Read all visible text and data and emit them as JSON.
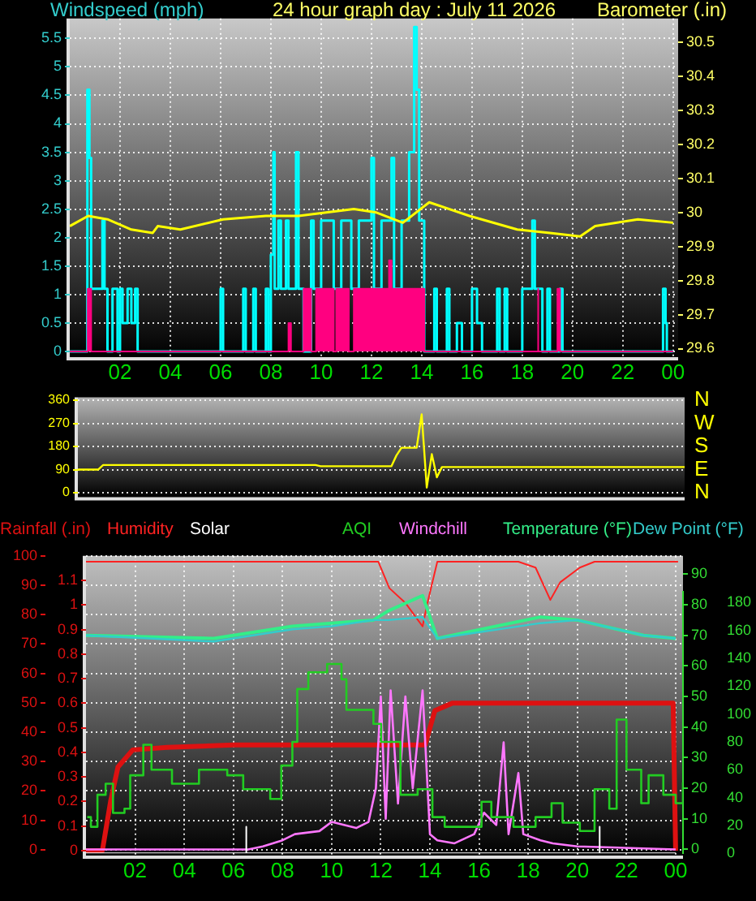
{
  "chart_data": [
    {
      "type": "line",
      "title": "24 hour graph day : July 11 2026",
      "ylabel": "Windspeed (mph)",
      "y2label": "Barometer (.in)",
      "xlim": [
        "2026-07-11T00:00",
        "2026-07-12T00:12"
      ],
      "xticks": [
        {
          "value": "2026-07-11T02:00",
          "label": "02"
        },
        {
          "value": "2026-07-11T04:00",
          "label": "04"
        },
        {
          "value": "2026-07-11T06:00",
          "label": "06"
        },
        {
          "value": "2026-07-11T08:00",
          "label": "08"
        },
        {
          "value": "2026-07-11T10:00",
          "label": "10"
        },
        {
          "value": "2026-07-11T12:00",
          "label": "12"
        },
        {
          "value": "2026-07-11T14:00",
          "label": "14"
        },
        {
          "value": "2026-07-11T16:00",
          "label": "16"
        },
        {
          "value": "2026-07-11T18:00",
          "label": "18"
        },
        {
          "value": "2026-07-11T20:00",
          "label": "20"
        },
        {
          "value": "2026-07-11T22:00",
          "label": "22"
        },
        {
          "value": "2026-07-12T00:00",
          "label": "00"
        }
      ],
      "ylim": [
        -0.1,
        5.85
      ],
      "yticks": [
        0,
        0.5,
        1,
        1.5,
        2,
        2.5,
        3,
        3.5,
        4,
        4.5,
        5,
        5.5
      ],
      "y2lim": [
        29.575,
        30.57
      ],
      "y2ticks": [
        29.6,
        29.7,
        29.8,
        29.9,
        30,
        30.1,
        30.2,
        30.3,
        30.4,
        30.5
      ],
      "grid": true,
      "series": [
        {
          "type": "step",
          "color": "#00ffff",
          "x": [
            "2026-07-11T00:00",
            "2026-07-11T00:42",
            "2026-07-11T00:47",
            "2026-07-11T00:51",
            "2026-07-11T01:18",
            "2026-07-11T01:23",
            "2026-07-11T01:30",
            "2026-07-11T01:42",
            "2026-07-11T01:54",
            "2026-07-11T02:00",
            "2026-07-11T02:06",
            "2026-07-11T02:18",
            "2026-07-11T02:27",
            "2026-07-11T02:36",
            "2026-07-11T02:42",
            "2026-07-11T06:00",
            "2026-07-11T06:06",
            "2026-07-11T06:54",
            "2026-07-11T07:00",
            "2026-07-11T07:18",
            "2026-07-11T07:24",
            "2026-07-11T07:48",
            "2026-07-11T07:54",
            "2026-07-11T08:00",
            "2026-07-11T08:06",
            "2026-07-11T08:09",
            "2026-07-11T08:18",
            "2026-07-11T08:24",
            "2026-07-11T08:36",
            "2026-07-11T08:42",
            "2026-07-11T09:00",
            "2026-07-11T09:06",
            "2026-07-11T09:18",
            "2026-07-11T09:36",
            "2026-07-11T09:42",
            "2026-07-11T10:00",
            "2026-07-11T10:30",
            "2026-07-11T10:48",
            "2026-07-11T11:12",
            "2026-07-11T11:30",
            "2026-07-11T12:00",
            "2026-07-11T12:06",
            "2026-07-11T12:24",
            "2026-07-11T12:48",
            "2026-07-11T12:54",
            "2026-07-11T13:12",
            "2026-07-11T13:30",
            "2026-07-11T13:42",
            "2026-07-11T13:48",
            "2026-07-11T13:54",
            "2026-07-11T14:06",
            "2026-07-11T14:30",
            "2026-07-11T14:36",
            "2026-07-11T15:00",
            "2026-07-11T15:06",
            "2026-07-11T15:24",
            "2026-07-11T15:36",
            "2026-07-11T16:00",
            "2026-07-11T16:12",
            "2026-07-11T16:24",
            "2026-07-11T17:00",
            "2026-07-11T17:06",
            "2026-07-11T17:18",
            "2026-07-11T17:24",
            "2026-07-11T18:00",
            "2026-07-11T18:24",
            "2026-07-11T18:30",
            "2026-07-11T18:48",
            "2026-07-11T19:00",
            "2026-07-11T19:06",
            "2026-07-11T19:30",
            "2026-07-11T19:36",
            "2026-07-11T23:36",
            "2026-07-11T23:42",
            "2026-07-11T23:45",
            "2026-07-12T00:00"
          ],
          "values": [
            0,
            4.6,
            3.4,
            1.1,
            2.3,
            1.1,
            0,
            1.1,
            0,
            1.1,
            0.5,
            1.1,
            0.5,
            1.1,
            0,
            1.1,
            0,
            1.1,
            0,
            1.1,
            0,
            1.1,
            0,
            1.7,
            3.5,
            1.1,
            2.3,
            1.1,
            2.3,
            1.1,
            3.5,
            1.1,
            0,
            2.3,
            1.1,
            2.3,
            1.1,
            2.3,
            1.1,
            2.3,
            3.4,
            1.1,
            2.3,
            3.4,
            1.1,
            2.3,
            3.5,
            5.7,
            4.6,
            2.3,
            0,
            1.1,
            0,
            1.1,
            0,
            0.5,
            0,
            1.1,
            0.5,
            0,
            1.1,
            0,
            1.1,
            0,
            1.1,
            2.3,
            1.1,
            0,
            1.1,
            0,
            1.1,
            0,
            1.1,
            0.5,
            0,
            0
          ]
        },
        {
          "type": "area",
          "color": "#ff0080",
          "x": [
            "2026-07-11T00:00",
            "2026-07-11T00:43",
            "2026-07-11T00:43",
            "2026-07-11T00:51",
            "2026-07-11T00:51",
            "2026-07-11T08:42",
            "2026-07-11T08:42",
            "2026-07-11T08:48",
            "2026-07-11T08:48",
            "2026-07-11T09:18",
            "2026-07-11T09:18",
            "2026-07-11T09:36",
            "2026-07-11T09:36",
            "2026-07-11T09:48",
            "2026-07-11T09:48",
            "2026-07-11T10:30",
            "2026-07-11T10:30",
            "2026-07-11T10:36",
            "2026-07-11T10:36",
            "2026-07-11T11:06",
            "2026-07-11T11:06",
            "2026-07-11T11:18",
            "2026-07-11T11:18",
            "2026-07-11T12:42",
            "2026-07-11T12:42",
            "2026-07-11T12:48",
            "2026-07-11T12:48",
            "2026-07-11T14:06",
            "2026-07-11T14:06",
            "2026-07-11T18:36",
            "2026-07-11T18:36",
            "2026-07-11T18:39",
            "2026-07-11T18:39",
            "2026-07-11T19:24",
            "2026-07-11T19:24",
            "2026-07-11T19:30",
            "2026-07-11T19:30",
            "2026-07-12T00:00"
          ],
          "values": [
            0,
            0,
            1.1,
            1.1,
            0,
            0,
            0.5,
            0.5,
            0,
            0,
            1.1,
            1.1,
            0,
            0,
            1.1,
            1.1,
            0,
            0,
            1.1,
            1.1,
            0,
            0,
            1.1,
            1.1,
            1.6,
            1.6,
            1.1,
            1.1,
            0,
            0,
            1.1,
            1.1,
            0,
            0,
            1.1,
            1.1,
            0,
            0
          ]
        },
        {
          "type": "line",
          "axis": "y2",
          "color": "#ffff00",
          "x": [
            "2026-07-11T00:00",
            "2026-07-11T00:44",
            "2026-07-11T01:30",
            "2026-07-11T02:27",
            "2026-07-11T03:18",
            "2026-07-11T03:30",
            "2026-07-11T04:24",
            "2026-07-11T06:06",
            "2026-07-11T07:48",
            "2026-07-11T09:06",
            "2026-07-11T11:18",
            "2026-07-11T12:12",
            "2026-07-11T13:15",
            "2026-07-11T14:18",
            "2026-07-11T15:54",
            "2026-07-11T17:48",
            "2026-07-11T19:06",
            "2026-07-11T20:18",
            "2026-07-11T20:54",
            "2026-07-11T22:36",
            "2026-07-12T00:00"
          ],
          "values": [
            29.96,
            29.99,
            29.98,
            29.95,
            29.94,
            29.96,
            29.95,
            29.98,
            29.99,
            29.99,
            30.01,
            30.0,
            29.97,
            30.03,
            29.99,
            29.95,
            29.94,
            29.93,
            29.96,
            29.98,
            29.97
          ]
        }
      ]
    },
    {
      "type": "line",
      "categories": [
        null,
        null,
        null,
        null,
        null,
        null,
        null,
        null,
        null,
        null,
        null,
        null,
        null,
        null,
        null,
        null,
        null,
        null,
        null,
        null,
        null,
        null,
        null,
        null,
        null,
        null,
        null,
        null,
        null,
        null,
        null,
        null,
        null,
        null,
        null,
        null,
        null,
        null,
        null,
        null,
        null,
        null,
        null,
        null,
        null,
        null,
        null,
        null,
        null,
        null,
        null,
        null,
        null,
        null,
        null,
        null,
        null,
        null,
        null,
        null,
        null,
        null,
        null,
        null,
        null,
        null,
        null,
        null,
        null,
        null,
        null,
        null,
        null,
        null,
        null,
        null,
        null,
        null,
        null,
        null,
        null,
        null,
        null,
        null,
        null,
        null,
        null,
        null,
        null,
        null,
        null,
        null,
        null,
        null,
        null,
        null,
        null,
        null,
        null,
        null,
        null,
        null,
        null,
        null,
        null,
        null,
        null,
        null,
        null,
        null,
        null,
        null,
        null,
        null,
        null,
        null,
        null,
        null,
        null,
        null,
        null
      ],
      "ylim": [
        -17,
        371
      ],
      "yticks": [
        0,
        90,
        180,
        270,
        360
      ],
      "annotations": [
        "N",
        "W",
        "S",
        "E",
        "N"
      ],
      "grid": "y",
      "series": [
        {
          "color": "#ffff00",
          "values": [
            90,
            90,
            90,
            90,
            90,
            108,
            108,
            108,
            108,
            108,
            108,
            108,
            108,
            108,
            108,
            108,
            108,
            108,
            108,
            108,
            108,
            108,
            108,
            108,
            108,
            108,
            108,
            108,
            108,
            108,
            108,
            108,
            108,
            108,
            108,
            108,
            108,
            108,
            108,
            108,
            108,
            108,
            108,
            108,
            108,
            108,
            108,
            108,
            103,
            103,
            103,
            103,
            103,
            103,
            103,
            103,
            103,
            103,
            103,
            103,
            103,
            103,
            103,
            145,
            175,
            175,
            175,
            175,
            305,
            20,
            150,
            60,
            100,
            100,
            100,
            100,
            100,
            100,
            100,
            100,
            100,
            100,
            100,
            100,
            100,
            100,
            100,
            100,
            100,
            100,
            100,
            100,
            100,
            100,
            100,
            100,
            100,
            100,
            100,
            100,
            100,
            100,
            100,
            100,
            100,
            100,
            100,
            100,
            100,
            100,
            100,
            100,
            100,
            100,
            100,
            100,
            100,
            100,
            100,
            100,
            100
          ]
        }
      ]
    },
    {
      "type": "line",
      "xlim": [
        "2026-07-11T00:00",
        "2026-07-12T00:18"
      ],
      "xticks": [
        {
          "value": "2026-07-11T02:00",
          "label": "02"
        },
        {
          "value": "2026-07-11T04:00",
          "label": "04"
        },
        {
          "value": "2026-07-11T06:00",
          "label": "06"
        },
        {
          "value": "2026-07-11T08:00",
          "label": "08"
        },
        {
          "value": "2026-07-11T10:00",
          "label": "10"
        },
        {
          "value": "2026-07-11T12:00",
          "label": "12"
        },
        {
          "value": "2026-07-11T14:00",
          "label": "14"
        },
        {
          "value": "2026-07-11T16:00",
          "label": "16"
        },
        {
          "value": "2026-07-11T18:00",
          "label": "18"
        },
        {
          "value": "2026-07-11T20:00",
          "label": "20"
        },
        {
          "value": "2026-07-11T22:00",
          "label": "22"
        },
        {
          "value": "2026-07-12T00:00",
          "label": "00"
        }
      ],
      "ylim": [
        -2,
        100
      ],
      "yticks": [
        0,
        10,
        20,
        30,
        40,
        50,
        60,
        70,
        80,
        90,
        100
      ],
      "y2lim": [
        -0.02,
        1.2
      ],
      "y2ticks": [
        0,
        0.1,
        0.2,
        0.3,
        0.4,
        0.5,
        0.6,
        0.7,
        0.8,
        0.9,
        1,
        1.1
      ],
      "y3lim": [
        -2,
        96
      ],
      "y3ticks": [
        0,
        10,
        20,
        30,
        40,
        50,
        60,
        70,
        80,
        90
      ],
      "grid": true,
      "legend": "top",
      "series": [
        {
          "name": "Rainfall (.in)",
          "axis": "y2",
          "color": "#dd1111",
          "x": [
            "2026-07-11T00:00",
            "2026-07-11T00:40",
            "2026-07-11T01:00",
            "2026-07-11T01:18",
            "2026-07-11T01:54",
            "2026-07-11T03:18",
            "2026-07-11T06:00",
            "2026-07-11T13:48",
            "2026-07-11T14:12",
            "2026-07-11T14:54",
            "2026-07-11T23:54",
            "2026-07-12T00:00"
          ],
          "values": [
            0,
            0,
            0.2,
            0.34,
            0.41,
            0.42,
            0.43,
            0.43,
            0.57,
            0.6,
            0.6,
            0
          ]
        },
        {
          "name": "Humidity",
          "color": "#ff2222",
          "x": [
            "2026-07-11T00:00",
            "2026-07-11T11:54",
            "2026-07-11T12:21",
            "2026-07-11T13:00",
            "2026-07-11T13:42",
            "2026-07-11T13:54",
            "2026-07-11T14:18",
            "2026-07-11T17:36",
            "2026-07-11T18:18",
            "2026-07-11T18:54",
            "2026-07-11T19:18",
            "2026-07-11T20:06",
            "2026-07-11T20:42",
            "2026-07-12T00:06"
          ],
          "values": [
            98,
            98,
            89,
            84,
            76,
            84,
            98,
            98,
            96,
            85,
            91,
            96,
            98,
            98
          ]
        },
        {
          "name": "Windchill",
          "axis": "y3",
          "color": "#ff77ff",
          "x": [
            "2026-07-11T00:00",
            "2026-07-11T06:36",
            "2026-07-11T07:12",
            "2026-07-11T08:00",
            "2026-07-11T08:30",
            "2026-07-11T09:30",
            "2026-07-11T10:00",
            "2026-07-11T10:30",
            "2026-07-11T11:00",
            "2026-07-11T11:30",
            "2026-07-11T11:48",
            "2026-07-11T12:00",
            "2026-07-11T12:12",
            "2026-07-11T12:24",
            "2026-07-11T12:42",
            "2026-07-11T13:00",
            "2026-07-11T13:18",
            "2026-07-11T13:42",
            "2026-07-11T14:00",
            "2026-07-11T14:18",
            "2026-07-11T15:00",
            "2026-07-11T15:48",
            "2026-07-11T16:12",
            "2026-07-11T16:42",
            "2026-07-11T17:00",
            "2026-07-11T17:12",
            "2026-07-11T17:36",
            "2026-07-11T17:48",
            "2026-07-11T18:30",
            "2026-07-11T19:00",
            "2026-07-11T20:00",
            "2026-07-12T00:00"
          ],
          "values": [
            0,
            0,
            1,
            3,
            5,
            6,
            9,
            8,
            7,
            9,
            20,
            50,
            10,
            52,
            15,
            50,
            20,
            52,
            5,
            3,
            2,
            5,
            12,
            8,
            35,
            5,
            25,
            5,
            3,
            2,
            1,
            0
          ]
        },
        {
          "name": "Temperature (°F)",
          "axis": "y3",
          "color": "#33ee88",
          "x": [
            "2026-07-11T00:00",
            "2026-07-11T05:12",
            "2026-07-11T08:24",
            "2026-07-11T10:00",
            "2026-07-11T11:42",
            "2026-07-11T12:18",
            "2026-07-11T13:42",
            "2026-07-11T14:18",
            "2026-07-11T18:30",
            "2026-07-11T20:00",
            "2026-07-11T22:42",
            "2026-07-12T00:00"
          ],
          "values": [
            70,
            69,
            73,
            74,
            75,
            78,
            83,
            69,
            76,
            75,
            70,
            69
          ]
        },
        {
          "name": "Dew Point (°F)",
          "axis": "y3",
          "color": "#33cccc",
          "x": [
            "2026-07-11T00:00",
            "2026-07-11T05:12",
            "2026-07-11T08:24",
            "2026-07-11T10:00",
            "2026-07-11T11:42",
            "2026-07-11T12:18",
            "2026-07-11T13:42",
            "2026-07-11T14:18",
            "2026-07-11T18:30",
            "2026-07-11T20:00",
            "2026-07-11T22:42",
            "2026-07-12T00:00"
          ],
          "values": [
            70,
            68,
            72,
            73,
            75,
            75,
            76,
            69,
            74,
            75,
            70,
            69
          ]
        }
      ]
    },
    {
      "type": "line",
      "xlim": [
        "2026-07-11T00:00",
        "2026-07-12T00:18"
      ],
      "ylim": [
        0,
        188
      ],
      "yticks": [
        0,
        20,
        40,
        60,
        80,
        100,
        120,
        140,
        160,
        180
      ],
      "tick_labels": "y",
      "legend": "top",
      "series": [
        {
          "name": "Solar",
          "color": "#ffffff",
          "x": [
            "2026-07-11T00:00",
            "2026-07-11T06:30",
            "2026-07-11T06:31",
            "2026-07-11T06:32",
            "2026-07-11T20:53",
            "2026-07-11T20:54",
            "2026-07-11T20:55",
            "2026-07-12T00:00"
          ],
          "values": [
            0,
            0,
            19,
            0,
            0,
            19,
            0,
            0
          ]
        },
        {
          "name": "AQI",
          "type": "step",
          "color": "#22cc22",
          "x": [
            "2026-07-11T00:03",
            "2026-07-11T00:12",
            "2026-07-11T00:28",
            "2026-07-11T00:48",
            "2026-07-11T01:06",
            "2026-07-11T01:34",
            "2026-07-11T01:48",
            "2026-07-11T02:20",
            "2026-07-11T02:40",
            "2026-07-11T03:30",
            "2026-07-11T04:36",
            "2026-07-11T05:45",
            "2026-07-11T06:24",
            "2026-07-11T07:30",
            "2026-07-11T07:57",
            "2026-07-11T08:24",
            "2026-07-11T08:36",
            "2026-07-11T09:03",
            "2026-07-11T09:49",
            "2026-07-11T10:24",
            "2026-07-11T10:36",
            "2026-07-11T11:42",
            "2026-07-11T12:01",
            "2026-07-11T12:21",
            "2026-07-11T12:48",
            "2026-07-11T13:30",
            "2026-07-11T14:06",
            "2026-07-11T14:36",
            "2026-07-11T15:12",
            "2026-07-11T16:06",
            "2026-07-11T16:30",
            "2026-07-11T17:24",
            "2026-07-11T18:18",
            "2026-07-11T18:57",
            "2026-07-11T19:24",
            "2026-07-11T20:06",
            "2026-07-11T20:42",
            "2026-07-11T21:18",
            "2026-07-11T21:36",
            "2026-07-11T22:00",
            "2026-07-11T22:36",
            "2026-07-11T22:54",
            "2026-07-11T23:30",
            "2026-07-12T00:00",
            "2026-07-12T00:18"
          ],
          "values": [
            26,
            19,
            42,
            50,
            29,
            32,
            56,
            78,
            60,
            50,
            60,
            56,
            46,
            39,
            63,
            80,
            118,
            130,
            136,
            125,
            103,
            93,
            80,
            80,
            42,
            46,
            26,
            19,
            19,
            37,
            26,
            19,
            26,
            36,
            22,
            16,
            46,
            32,
            96,
            60,
            36,
            56,
            42,
            36,
            51
          ]
        }
      ]
    }
  ]
}
